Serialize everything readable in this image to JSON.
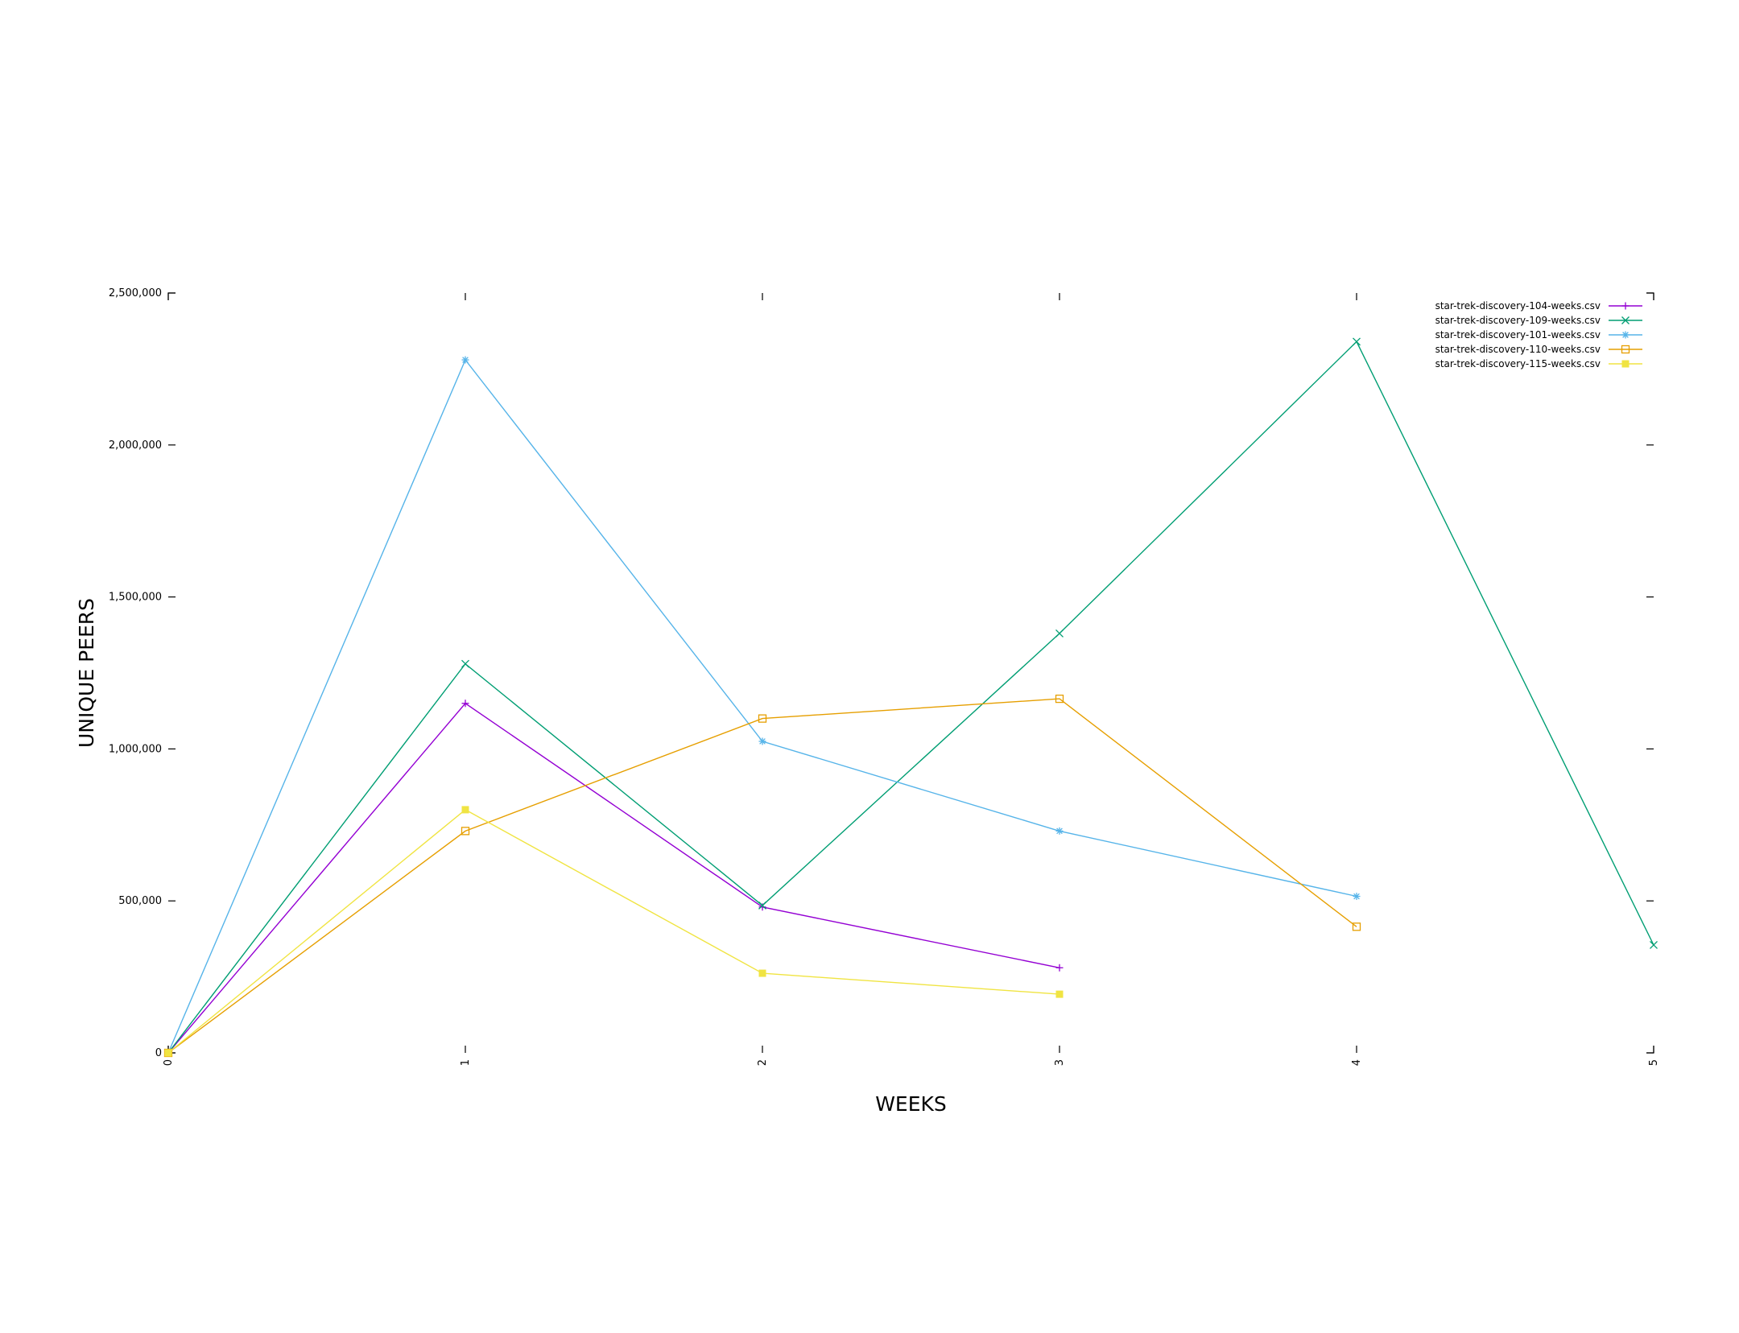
{
  "chart_data": {
    "type": "line",
    "xlabel": "WEEKS",
    "ylabel": "UNIQUE PEERS",
    "xlim": [
      0,
      5
    ],
    "ylim": [
      0,
      2500000
    ],
    "x_ticks": [
      "0",
      "1",
      "2",
      "3",
      "4",
      "5"
    ],
    "y_ticks": [
      "0",
      "500,000",
      "1,000,000",
      "1,500,000",
      "2,000,000",
      "2,500,000"
    ],
    "grid": false,
    "legend_position": "top-right",
    "series": [
      {
        "name": "star-trek-discovery-104-weeks.csv",
        "color": "#9400d3",
        "marker": "plus",
        "x": [
          0,
          1,
          2,
          3
        ],
        "values": [
          0,
          1150000,
          480000,
          280000
        ]
      },
      {
        "name": "star-trek-discovery-109-weeks.csv",
        "color": "#009e73",
        "marker": "cross",
        "x": [
          0,
          1,
          2,
          3,
          4,
          5
        ],
        "values": [
          0,
          1280000,
          485000,
          1380000,
          2340000,
          355000
        ]
      },
      {
        "name": "star-trek-discovery-101-weeks.csv",
        "color": "#56b4e9",
        "marker": "star",
        "x": [
          0,
          1,
          2,
          3,
          4
        ],
        "values": [
          0,
          2280000,
          1025000,
          730000,
          515000
        ]
      },
      {
        "name": "star-trek-discovery-110-weeks.csv",
        "color": "#e69f00",
        "marker": "open-square",
        "x": [
          0,
          1,
          2,
          3,
          4
        ],
        "values": [
          0,
          730000,
          1100000,
          1165000,
          415000
        ]
      },
      {
        "name": "star-trek-discovery-115-weeks.csv",
        "color": "#f0e442",
        "marker": "filled-square",
        "x": [
          0,
          1,
          2,
          3
        ],
        "values": [
          0,
          800000,
          262000,
          193000
        ]
      }
    ]
  }
}
